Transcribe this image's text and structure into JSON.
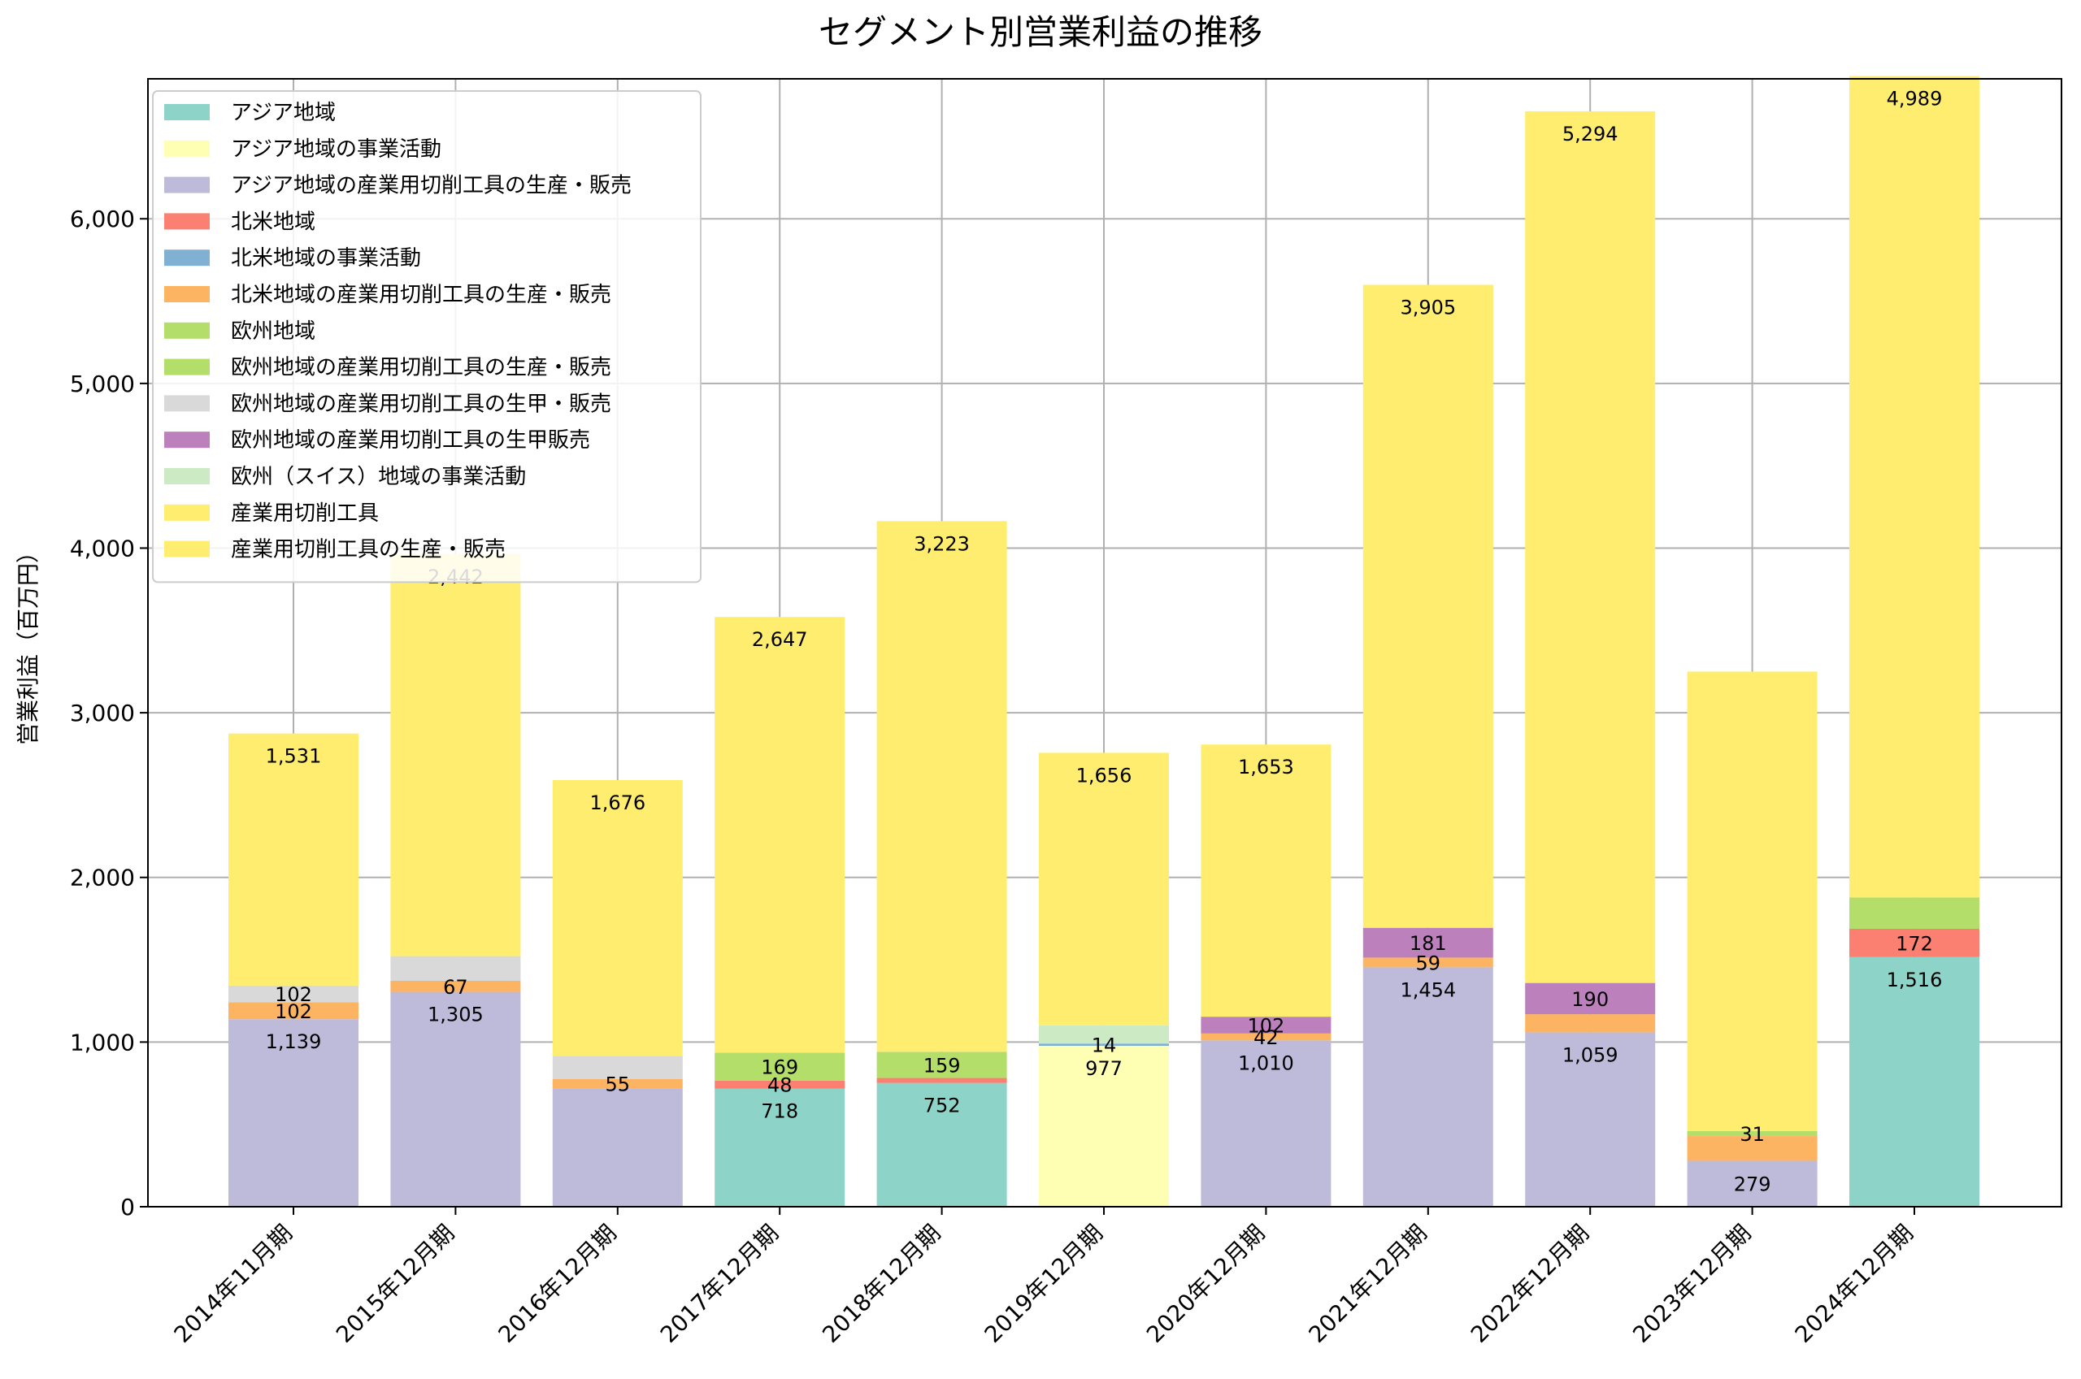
{
  "chart_data": {
    "type": "bar",
    "stacked": true,
    "title": "セグメント別営業利益の推移",
    "xlabel": "",
    "ylabel": "営業利益（百万円）",
    "ylim": [
      0,
      6850
    ],
    "yticks": [
      0,
      1000,
      2000,
      3000,
      4000,
      5000,
      6000
    ],
    "ytick_labels": [
      "0",
      "1,000",
      "2,000",
      "3,000",
      "4,000",
      "5,000",
      "6,000"
    ],
    "grid": true,
    "legend_position": "top-left",
    "categories": [
      "2014年11月期",
      "2015年12月期",
      "2016年12月期",
      "2017年12月期",
      "2018年12月期",
      "2019年12月期",
      "2020年12月期",
      "2021年12月期",
      "2022年12月期",
      "2023年12月期",
      "2024年12月期"
    ],
    "series": [
      {
        "name": "アジア地域",
        "color": "#8dd3c7",
        "values": [
          0,
          0,
          0,
          718,
          752,
          0,
          0,
          0,
          0,
          0,
          1516
        ]
      },
      {
        "name": "アジア地域の事業活動",
        "color": "#ffffb3",
        "values": [
          0,
          0,
          0,
          0,
          0,
          977,
          0,
          0,
          0,
          0,
          0
        ]
      },
      {
        "name": "アジア地域の産業用切削工具の生産・販売",
        "color": "#bebada",
        "values": [
          1139,
          1305,
          720,
          0,
          0,
          0,
          1010,
          1454,
          1059,
          279,
          0
        ]
      },
      {
        "name": "北米地域",
        "color": "#fb8072",
        "values": [
          0,
          0,
          0,
          48,
          30,
          0,
          0,
          0,
          0,
          0,
          172
        ]
      },
      {
        "name": "北米地域の事業活動",
        "color": "#80b1d3",
        "values": [
          0,
          0,
          0,
          0,
          0,
          14,
          0,
          0,
          0,
          0,
          0
        ]
      },
      {
        "name": "北米地域の産業用切削工具の生産・販売",
        "color": "#fdb462",
        "values": [
          102,
          67,
          55,
          0,
          0,
          0,
          42,
          59,
          110,
          150,
          0
        ]
      },
      {
        "name": "欧州地域",
        "color": "#b3de69",
        "values": [
          0,
          0,
          0,
          169,
          159,
          0,
          0,
          0,
          0,
          0,
          190
        ]
      },
      {
        "name": "欧州地域の産業用切削工具の生産・販売",
        "color": "#b3de69",
        "values": [
          0,
          0,
          0,
          0,
          0,
          0,
          0,
          0,
          0,
          31,
          0
        ]
      },
      {
        "name": "欧州地域の産業用切削工具の生甲・販売",
        "color": "#d9d9d9",
        "values": [
          102,
          150,
          140,
          0,
          0,
          0,
          0,
          0,
          0,
          0,
          0
        ]
      },
      {
        "name": "欧州地域の産業用切削工具の生甲販売",
        "color": "#bc80bd",
        "values": [
          0,
          0,
          0,
          0,
          0,
          0,
          102,
          181,
          190,
          0,
          0
        ]
      },
      {
        "name": "欧州（スイス）地域の事業活動",
        "color": "#ccebc5",
        "values": [
          0,
          0,
          0,
          0,
          0,
          110,
          0,
          0,
          0,
          0,
          0
        ]
      },
      {
        "name": "産業用切削工具",
        "color": "#ffed6f",
        "values": [
          0,
          0,
          0,
          0,
          0,
          1656,
          1653,
          3905,
          5294,
          2790,
          4989
        ]
      },
      {
        "name": "産業用切削工具の生産・販売",
        "color": "#ffed6f",
        "values": [
          1531,
          2442,
          1676,
          2647,
          3223,
          0,
          0,
          0,
          0,
          0,
          0
        ]
      }
    ],
    "data_labels": [
      [
        {
          "text": "1,139",
          "series": 2
        },
        {
          "text": "102",
          "series": 5
        },
        {
          "text": "102",
          "series": 8
        },
        {
          "text": "1,531",
          "series": 12
        }
      ],
      [
        {
          "text": "1,305",
          "series": 2
        },
        {
          "text": "67",
          "series": 5
        },
        {
          "text": "2,442",
          "series": 12
        }
      ],
      [
        {
          "text": "55",
          "series": 5
        },
        {
          "text": "1,676",
          "series": 12
        }
      ],
      [
        {
          "text": "718",
          "series": 0
        },
        {
          "text": "48",
          "series": 3
        },
        {
          "text": "169",
          "series": 6
        },
        {
          "text": "2,647",
          "series": 12
        }
      ],
      [
        {
          "text": "752",
          "series": 0
        },
        {
          "text": "159",
          "series": 6
        },
        {
          "text": "3,223",
          "series": 12
        }
      ],
      [
        {
          "text": "977",
          "series": 1
        },
        {
          "text": "14",
          "series": 4
        },
        {
          "text": "1,656",
          "series": 11
        }
      ],
      [
        {
          "text": "1,010",
          "series": 2
        },
        {
          "text": "42",
          "series": 5
        },
        {
          "text": "102",
          "series": 9
        },
        {
          "text": "1,653",
          "series": 11
        }
      ],
      [
        {
          "text": "1,454",
          "series": 2
        },
        {
          "text": "59",
          "series": 5
        },
        {
          "text": "181",
          "series": 9
        },
        {
          "text": "3,905",
          "series": 11
        }
      ],
      [
        {
          "text": "1,059",
          "series": 2
        },
        {
          "text": "190",
          "series": 9
        },
        {
          "text": "5,294",
          "series": 11
        }
      ],
      [
        {
          "text": "279",
          "series": 2
        },
        {
          "text": "31",
          "series": 7
        }
      ],
      [
        {
          "text": "1,516",
          "series": 0
        },
        {
          "text": "172",
          "series": 3
        },
        {
          "text": "4,989",
          "series": 11
        }
      ]
    ]
  }
}
